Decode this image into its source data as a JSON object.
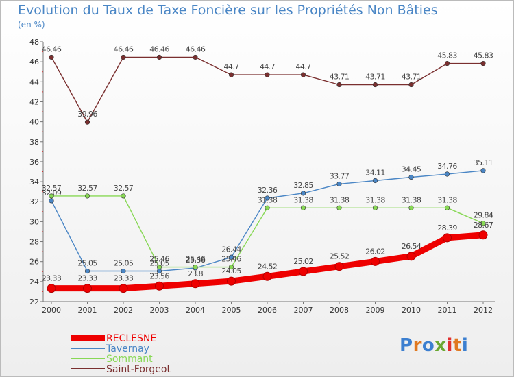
{
  "title": "Evolution du Taux de Taxe Foncière sur les Propriétés Non Bâties",
  "unit_label": "(en %)",
  "logo": {
    "text": "Proxiti",
    "colors": [
      "#3c7fd0",
      "#e07820",
      "#3c7fd0",
      "#6aa832",
      "#e03030",
      "#e07820",
      "#3c7fd0"
    ]
  },
  "chart_data": {
    "type": "line",
    "title": "Evolution du Taux de Taxe Foncière sur les Propriétés Non Bâties",
    "xlabel": "",
    "ylabel": "(en %)",
    "ylim": [
      22,
      48
    ],
    "yticks": [
      22,
      24,
      26,
      28,
      30,
      32,
      34,
      36,
      38,
      40,
      42,
      44,
      46,
      48
    ],
    "grid": false,
    "legend_position": "bottom-left",
    "categories": [
      "2000",
      "2001",
      "2002",
      "2003",
      "2004",
      "2005",
      "2006",
      "2007",
      "2008",
      "2009",
      "2010",
      "2011",
      "2012"
    ],
    "series": [
      {
        "name": "Saint-Forgeot",
        "color": "#7a2f2f",
        "values": [
          46.46,
          39.96,
          46.46,
          46.46,
          46.46,
          44.7,
          44.7,
          44.7,
          43.71,
          43.71,
          43.71,
          45.83,
          45.83
        ],
        "labels": [
          "46.46",
          "39.96",
          "46.46",
          "46.46",
          "46.46",
          "44.7",
          "44.7",
          "44.7",
          "43.71",
          "43.71",
          "43.71",
          "45.83",
          "45.83"
        ]
      },
      {
        "name": "Tavernay",
        "color": "#4a86c5",
        "values": [
          32.09,
          25.05,
          25.05,
          25.05,
          25.36,
          26.44,
          32.36,
          32.85,
          33.77,
          34.11,
          34.45,
          34.76,
          35.11
        ],
        "labels": [
          "32.09",
          "25.05",
          "25.05",
          "25.05",
          "25.36",
          "26.44",
          "32.36",
          "32.85",
          "33.77",
          "34.11",
          "34.45",
          "34.76",
          "35.11"
        ]
      },
      {
        "name": "Sommant",
        "color": "#88d855",
        "values": [
          32.57,
          32.57,
          32.57,
          25.46,
          25.46,
          25.46,
          31.38,
          31.38,
          31.38,
          31.38,
          31.38,
          31.38,
          29.84
        ],
        "labels": [
          "32.57",
          "32.57",
          "32.57",
          "25.46",
          "25.46",
          "25.46",
          "31.38",
          "31.38",
          "31.38",
          "31.38",
          "31.38",
          "31.38",
          "29.84"
        ]
      },
      {
        "name": "RECLESNE",
        "color": "#ee0000",
        "values": [
          23.33,
          23.33,
          23.33,
          23.56,
          23.8,
          24.05,
          24.52,
          25.02,
          25.52,
          26.02,
          26.54,
          28.39,
          28.67
        ],
        "labels": [
          "23.33",
          "23.33",
          "23.33",
          "23.56",
          "23.8",
          "24.05",
          "24.52",
          "25.02",
          "25.52",
          "26.02",
          "26.54",
          "28.39",
          "28.67"
        ]
      }
    ],
    "legend": [
      {
        "name": "RECLESNE",
        "color": "#ee0000",
        "style": "thick"
      },
      {
        "name": "Tavernay",
        "color": "#4a86c5",
        "style": "thin"
      },
      {
        "name": "Sommant",
        "color": "#88d855",
        "style": "thin"
      },
      {
        "name": "Saint-Forgeot",
        "color": "#7a2f2f",
        "style": "thin"
      }
    ]
  }
}
